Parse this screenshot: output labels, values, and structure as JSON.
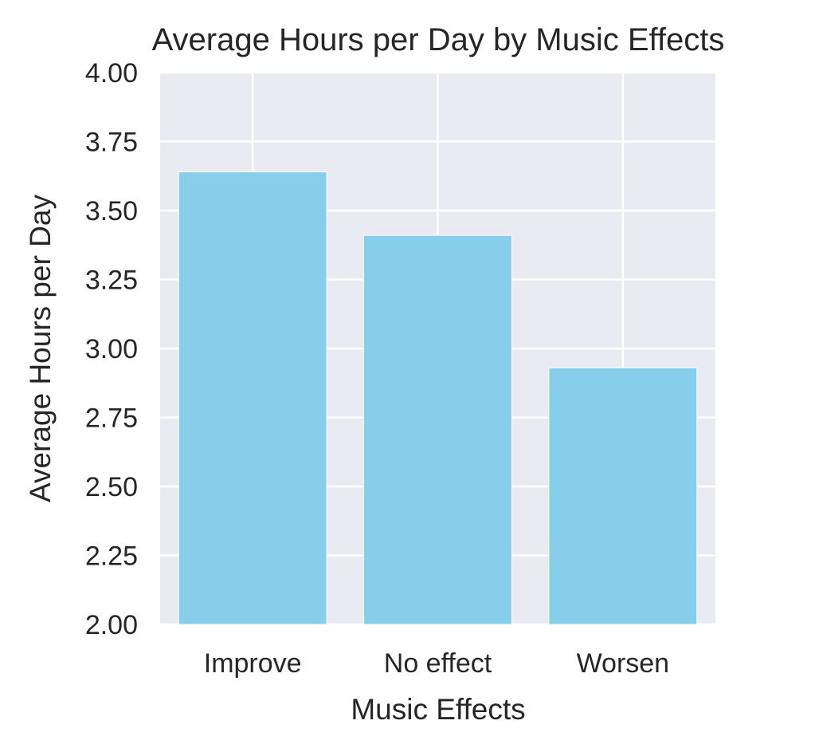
{
  "chart_data": {
    "type": "bar",
    "title": "Average Hours per Day by Music Effects",
    "xlabel": "Music Effects",
    "ylabel": "Average Hours per Day",
    "categories": [
      "Improve",
      "No effect",
      "Worsen"
    ],
    "values": [
      3.64,
      3.41,
      2.93
    ],
    "ylim": [
      2.0,
      4.0
    ],
    "yticks": [
      "2.00",
      "2.25",
      "2.50",
      "2.75",
      "3.00",
      "3.25",
      "3.50",
      "3.75",
      "4.00"
    ],
    "grid": true,
    "colors": {
      "bar": "#87CEEB",
      "plot_background": "#EAEAF2",
      "grid": "#FFFFFF",
      "text": "#262626"
    }
  }
}
